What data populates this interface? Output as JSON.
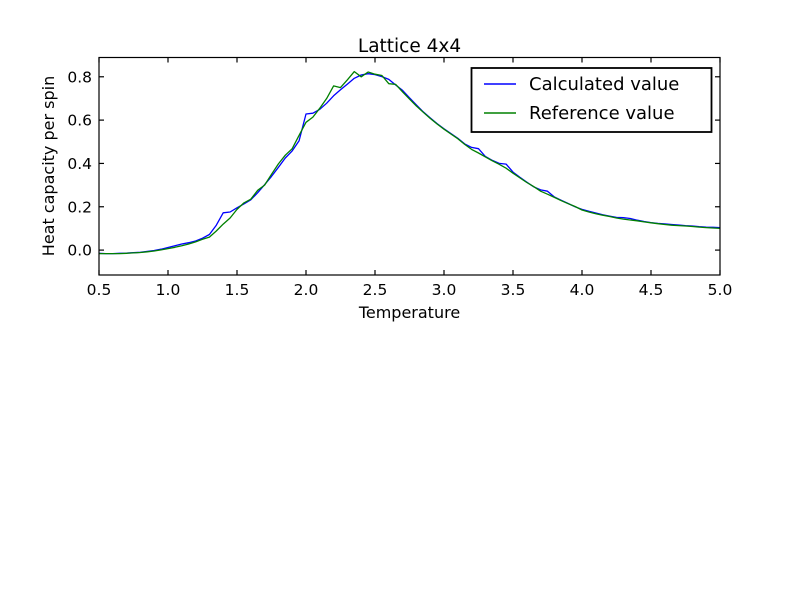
{
  "colors": {
    "background": "#ffffff",
    "axes_and_text": "#000000",
    "calculated_line": "#0000ff",
    "reference_line": "#008000"
  },
  "chart_data": {
    "type": "line",
    "title": "Lattice 4x4",
    "xlabel": "Temperature",
    "ylabel": "Heat capacity per spin",
    "xlim": [
      0.5,
      5.0
    ],
    "ylim": [
      -0.115,
      0.889
    ],
    "grid": false,
    "legend_position": "upper right",
    "x_ticks": [
      0.5,
      1.0,
      1.5,
      2.0,
      2.5,
      3.0,
      3.5,
      4.0,
      4.5,
      5.0
    ],
    "x_tick_labels": [
      "0.5",
      "1.0",
      "1.5",
      "2.0",
      "2.5",
      "3.0",
      "3.5",
      "4.0",
      "4.5",
      "5.0"
    ],
    "y_ticks": [
      0.0,
      0.2,
      0.4,
      0.6,
      0.8
    ],
    "y_tick_labels": [
      "0.0",
      "0.2",
      "0.4",
      "0.6",
      "0.8"
    ],
    "x": [
      0.5,
      0.55,
      0.6,
      0.65,
      0.7,
      0.75,
      0.8,
      0.85,
      0.9,
      0.95,
      1.0,
      1.05,
      1.1,
      1.15,
      1.2,
      1.25,
      1.3,
      1.35,
      1.4,
      1.45,
      1.5,
      1.55,
      1.6,
      1.65,
      1.7,
      1.75,
      1.8,
      1.85,
      1.9,
      1.95,
      2.0,
      2.05,
      2.1,
      2.15,
      2.2,
      2.25,
      2.3,
      2.35,
      2.4,
      2.45,
      2.5,
      2.55,
      2.6,
      2.65,
      2.7,
      2.75,
      2.8,
      2.85,
      2.9,
      2.95,
      3.0,
      3.05,
      3.1,
      3.15,
      3.2,
      3.25,
      3.3,
      3.35,
      3.4,
      3.45,
      3.5,
      3.55,
      3.6,
      3.65,
      3.7,
      3.75,
      3.8,
      3.85,
      3.9,
      3.95,
      4.0,
      4.05,
      4.1,
      4.15,
      4.2,
      4.25,
      4.3,
      4.35,
      4.4,
      4.45,
      4.5,
      4.55,
      4.6,
      4.65,
      4.7,
      4.75,
      4.8,
      4.85,
      4.9,
      4.95,
      5.0
    ],
    "series": [
      {
        "name": "Calculated value",
        "color": "#0000ff",
        "values": [
          -0.015,
          -0.016,
          -0.016,
          -0.015,
          -0.014,
          -0.012,
          -0.01,
          -0.006,
          -0.002,
          0.004,
          0.012,
          0.02,
          0.028,
          0.034,
          0.042,
          0.055,
          0.072,
          0.115,
          0.172,
          0.176,
          0.195,
          0.213,
          0.232,
          0.265,
          0.302,
          0.34,
          0.382,
          0.425,
          0.458,
          0.505,
          0.628,
          0.632,
          0.65,
          0.678,
          0.712,
          0.74,
          0.766,
          0.793,
          0.808,
          0.814,
          0.81,
          0.801,
          0.788,
          0.762,
          0.737,
          0.703,
          0.67,
          0.638,
          0.61,
          0.584,
          0.56,
          0.538,
          0.516,
          0.49,
          0.474,
          0.468,
          0.432,
          0.414,
          0.4,
          0.397,
          0.36,
          0.336,
          0.314,
          0.292,
          0.278,
          0.272,
          0.245,
          0.23,
          0.215,
          0.2,
          0.188,
          0.179,
          0.171,
          0.163,
          0.157,
          0.151,
          0.15,
          0.146,
          0.138,
          0.132,
          0.127,
          0.123,
          0.121,
          0.118,
          0.116,
          0.113,
          0.111,
          0.108,
          0.106,
          0.105,
          0.104
        ]
      },
      {
        "name": "Reference value",
        "color": "#008000",
        "values": [
          -0.016,
          -0.016,
          -0.016,
          -0.016,
          -0.015,
          -0.013,
          -0.011,
          -0.008,
          -0.004,
          0.001,
          0.007,
          0.013,
          0.02,
          0.028,
          0.038,
          0.05,
          0.06,
          0.088,
          0.12,
          0.148,
          0.188,
          0.218,
          0.235,
          0.276,
          0.3,
          0.35,
          0.398,
          0.438,
          0.468,
          0.53,
          0.59,
          0.614,
          0.655,
          0.7,
          0.758,
          0.75,
          0.786,
          0.824,
          0.8,
          0.822,
          0.812,
          0.806,
          0.768,
          0.765,
          0.73,
          0.697,
          0.665,
          0.636,
          0.608,
          0.582,
          0.558,
          0.536,
          0.514,
          0.488,
          0.465,
          0.448,
          0.43,
          0.412,
          0.396,
          0.378,
          0.355,
          0.333,
          0.312,
          0.293,
          0.272,
          0.258,
          0.243,
          0.228,
          0.214,
          0.201,
          0.185,
          0.176,
          0.168,
          0.161,
          0.155,
          0.148,
          0.143,
          0.139,
          0.135,
          0.13,
          0.126,
          0.122,
          0.118,
          0.115,
          0.113,
          0.111,
          0.109,
          0.106,
          0.104,
          0.102,
          0.1
        ]
      }
    ]
  }
}
